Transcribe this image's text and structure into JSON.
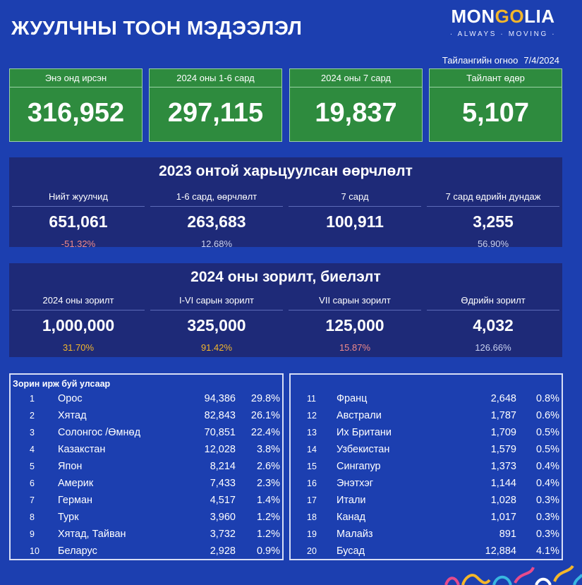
{
  "header": {
    "title": "ЖУУЛЧНЫ ТООН МЭДЭЭЛЭЛ",
    "logo_pre": "MON",
    "logo_go": "GO",
    "logo_post": "LIA",
    "logo_sub": "· ALWAYS · MOVING ·",
    "report_date_label": "Тайлангийн огноо",
    "report_date_value": "7/4/2024"
  },
  "kpis": [
    {
      "label": "Энэ онд ирсэн",
      "value": "316,952"
    },
    {
      "label": "2024 оны 1-6 сард",
      "value": "297,115"
    },
    {
      "label": "2024 оны 7 сард",
      "value": "19,837"
    },
    {
      "label": "Тайлант өдөр",
      "value": "5,107"
    }
  ],
  "comparison": {
    "title": "2023 онтой харьцуулсан өөрчлөлт",
    "columns": [
      {
        "label": "Нийт жуулчид",
        "value": "651,061",
        "pct": "-51.32%"
      },
      {
        "label": "1-6 сард, өөрчлөлт",
        "value": "263,683",
        "pct": "12.68%"
      },
      {
        "label": "7 сард",
        "value": "100,911",
        "pct": ""
      },
      {
        "label": "7 сард өдрийн дундаж",
        "value": "3,255",
        "pct": "56.90%"
      }
    ]
  },
  "targets": {
    "title": "2024 оны зорилт, биелэлт",
    "columns": [
      {
        "label": "2024 оны зорилт",
        "value": "1,000,000",
        "pct": "31.70%"
      },
      {
        "label": "I-VI сарын зорилт",
        "value": "325,000",
        "pct": "91.42%"
      },
      {
        "label": "VII сарын зорилт",
        "value": "125,000",
        "pct": "15.87%"
      },
      {
        "label": "Өдрийн зорилт",
        "value": "4,032",
        "pct": "126.66%"
      }
    ]
  },
  "countries": {
    "title": "Зорин ирж буй улсаар",
    "left": [
      {
        "rank": "1",
        "name": "Орос",
        "count": "94,386",
        "pct": "29.8%"
      },
      {
        "rank": "2",
        "name": "Хятад",
        "count": "82,843",
        "pct": "26.1%"
      },
      {
        "rank": "3",
        "name": "Солонгос /Өмнөд",
        "count": "70,851",
        "pct": "22.4%"
      },
      {
        "rank": "4",
        "name": "Казакстан",
        "count": "12,028",
        "pct": "3.8%"
      },
      {
        "rank": "5",
        "name": "Япон",
        "count": "8,214",
        "pct": "2.6%"
      },
      {
        "rank": "6",
        "name": "Америк",
        "count": "7,433",
        "pct": "2.3%"
      },
      {
        "rank": "7",
        "name": "Герман",
        "count": "4,517",
        "pct": "1.4%"
      },
      {
        "rank": "8",
        "name": "Турк",
        "count": "3,960",
        "pct": "1.2%"
      },
      {
        "rank": "9",
        "name": "Хятад, Тайван",
        "count": "3,732",
        "pct": "1.2%"
      },
      {
        "rank": "10",
        "name": "Беларус",
        "count": "2,928",
        "pct": "0.9%"
      }
    ],
    "right": [
      {
        "rank": "11",
        "name": "Франц",
        "count": "2,648",
        "pct": "0.8%"
      },
      {
        "rank": "12",
        "name": "Австрали",
        "count": "1,787",
        "pct": "0.6%"
      },
      {
        "rank": "13",
        "name": "Их Британи",
        "count": "1,709",
        "pct": "0.5%"
      },
      {
        "rank": "14",
        "name": "Узбекистан",
        "count": "1,579",
        "pct": "0.5%"
      },
      {
        "rank": "15",
        "name": "Сингапур",
        "count": "1,373",
        "pct": "0.4%"
      },
      {
        "rank": "16",
        "name": "Энэтхэг",
        "count": "1,144",
        "pct": "0.4%"
      },
      {
        "rank": "17",
        "name": "Итали",
        "count": "1,028",
        "pct": "0.3%"
      },
      {
        "rank": "18",
        "name": "Канад",
        "count": "1,017",
        "pct": "0.3%"
      },
      {
        "rank": "19",
        "name": "Малайз",
        "count": "891",
        "pct": "0.3%"
      },
      {
        "rank": "20",
        "name": "Бусад",
        "count": "12,884",
        "pct": "4.1%"
      }
    ]
  },
  "colors": {
    "background": "#1c3fb0",
    "kpi_green": "#2e8b3e",
    "panel_navy": "#1e2a78",
    "negative": "#f08a8a",
    "positive": "#c9d2f0",
    "gold": "#f3b62b"
  }
}
